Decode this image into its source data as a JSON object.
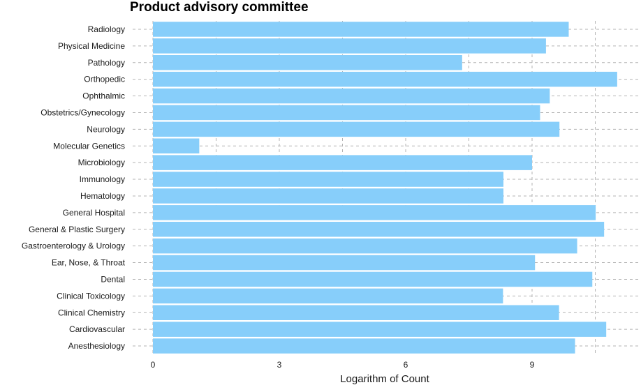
{
  "chart_data": {
    "type": "bar",
    "orientation": "horizontal",
    "title": "Product advisory committee",
    "xlabel": "Logarithm of Count",
    "ylabel": "",
    "xlim": [
      0,
      11.2
    ],
    "xticks": [
      0,
      3,
      6,
      9
    ],
    "grid": "dashed",
    "bar_color": "#87CEFA",
    "categories": [
      "Radiology",
      "Physical Medicine",
      "Pathology",
      "Orthopedic",
      "Ophthalmic",
      "Obstetrics/Gynecology",
      "Neurology",
      "Molecular Genetics",
      "Microbiology",
      "Immunology",
      "Hematology",
      "General Hospital",
      "General & Plastic Surgery",
      "Gastroenterology & Urology",
      "Ear, Nose, & Throat",
      "Dental",
      "Clinical Toxicology",
      "Clinical Chemistry",
      "Cardiovascular",
      "Anesthesiology"
    ],
    "values": [
      9.87,
      9.33,
      7.34,
      11.02,
      9.42,
      9.19,
      9.65,
      1.1,
      9.0,
      8.32,
      8.32,
      10.51,
      10.71,
      10.07,
      9.07,
      10.43,
      8.31,
      9.64,
      10.76,
      10.02
    ]
  }
}
